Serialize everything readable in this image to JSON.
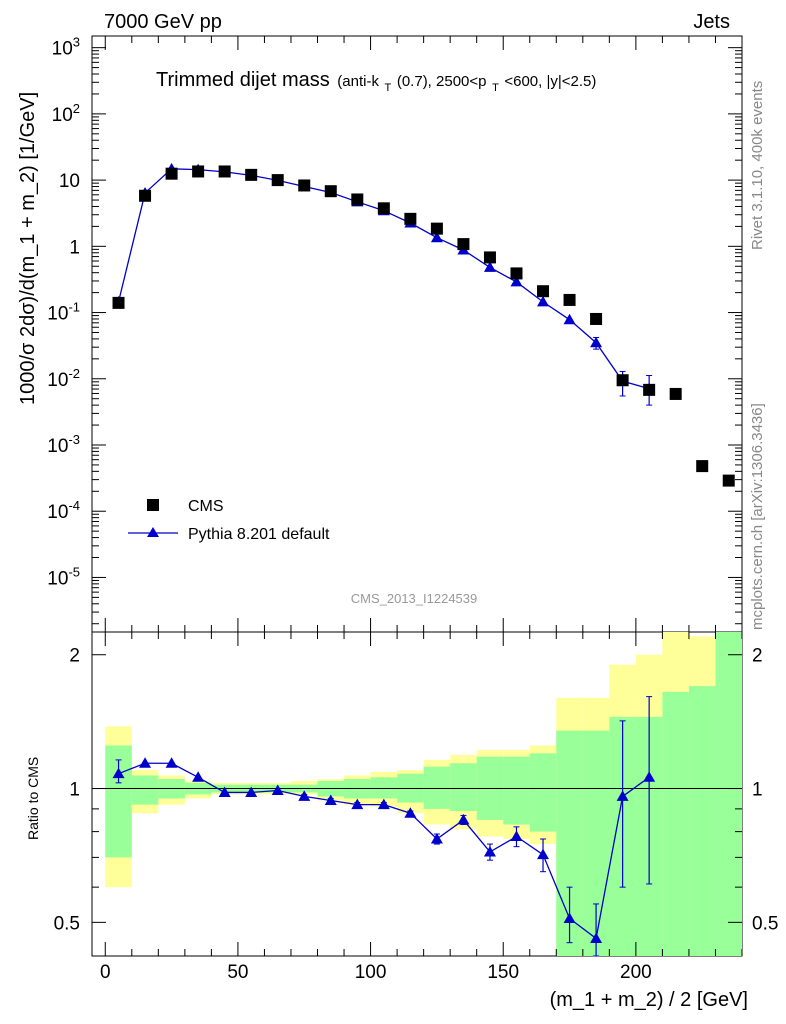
{
  "header": {
    "left": "7000 GeV pp",
    "right": "Jets"
  },
  "title": {
    "main": "Trimmed dijet mass",
    "sub_pre": "(anti-k",
    "sub_k_sub": "T",
    "sub_mid": "(0.7), 2500<p",
    "sub_p_sub": "T",
    "sub_post": "<600, |y|<2.5)"
  },
  "side_labels": {
    "rivet": "Rivet 3.1.10,  400k events",
    "arxiv": "mcplots.cern.ch [arXiv:1306.3436]"
  },
  "analysis_id": "CMS_2013_I1224539",
  "axes": {
    "ylabel_main": "1000/σ 2dσ)/d(m_1 + m_2) [1/GeV]",
    "ylabel_ratio": "Ratio to CMS",
    "xlabel": "(m_1 + m_2) / 2 [GeV]"
  },
  "legend": {
    "data_label": "CMS",
    "mc_label": "Pythia 8.201 default",
    "position": "bottom-left"
  },
  "colors": {
    "data": "#000000",
    "mc": "#0000cc",
    "band_inner": "#99ff99",
    "band_outer": "#ffff99",
    "id_text": "#999999"
  },
  "chart_data": [
    {
      "type": "scatter",
      "panel": "main",
      "yscale": "log",
      "xlim": [
        -5,
        240
      ],
      "ylim": [
        1.5e-06,
        1500
      ],
      "ytick_labels": [
        "10^-5",
        "10^-4",
        "10^-3",
        "10^-2",
        "10^-1",
        "1",
        "10",
        "10^2",
        "10^3"
      ],
      "series": [
        {
          "name": "CMS",
          "style": "markers",
          "x": [
            5,
            15,
            25,
            35,
            45,
            55,
            65,
            75,
            85,
            95,
            105,
            115,
            125,
            135,
            145,
            155,
            165,
            175,
            185,
            195,
            205,
            215,
            225,
            235
          ],
          "y": [
            0.14,
            5.8,
            12.5,
            13.5,
            13.5,
            12.0,
            10.0,
            8.3,
            6.8,
            5.1,
            3.75,
            2.6,
            1.85,
            1.08,
            0.68,
            0.39,
            0.21,
            0.155,
            0.08,
            0.0095,
            0.0068,
            0.0059,
            0.00048,
            0.00029
          ]
        },
        {
          "name": "Pythia 8.201 default",
          "style": "line+markers",
          "x": [
            5,
            15,
            25,
            35,
            45,
            55,
            65,
            75,
            85,
            95,
            105,
            115,
            125,
            135,
            145,
            155,
            165,
            175,
            185,
            195,
            205
          ],
          "y": [
            0.145,
            6.4,
            14.8,
            14.4,
            13.3,
            11.8,
            9.9,
            8.0,
            6.5,
            4.7,
            3.45,
            2.25,
            1.35,
            0.88,
            0.48,
            0.29,
            0.145,
            0.078,
            0.035,
            0.0092,
            0.0071
          ],
          "yerr_low": [
            0.01,
            0.2,
            0.3,
            0.3,
            0.2,
            0.2,
            0.1,
            0.1,
            0.1,
            0.1,
            0.1,
            0.1,
            0.05,
            0.04,
            0.03,
            0.02,
            0.012,
            0.008,
            0.007,
            0.0037,
            0.0031
          ],
          "yerr_high": [
            0.01,
            0.2,
            0.3,
            0.3,
            0.2,
            0.2,
            0.1,
            0.1,
            0.1,
            0.1,
            0.1,
            0.1,
            0.05,
            0.04,
            0.03,
            0.02,
            0.012,
            0.008,
            0.007,
            0.0037,
            0.0041
          ]
        }
      ]
    },
    {
      "type": "line",
      "panel": "ratio",
      "xlim": [
        -5,
        240
      ],
      "ylim": [
        0.42,
        2.25
      ],
      "ytick_labels": [
        "0.5",
        "1",
        "2"
      ],
      "xtick_labels": [
        "0",
        "50",
        "100",
        "150",
        "200"
      ],
      "bands": {
        "edges": [
          0,
          10,
          20,
          30,
          40,
          50,
          60,
          70,
          80,
          90,
          100,
          110,
          120,
          130,
          140,
          150,
          160,
          170,
          180,
          190,
          200,
          210,
          220,
          230,
          240
        ],
        "inner_low": [
          0.7,
          0.92,
          0.95,
          0.97,
          0.98,
          0.98,
          0.98,
          0.98,
          0.96,
          0.95,
          0.95,
          0.93,
          0.9,
          0.89,
          0.85,
          0.83,
          0.8,
          0.35,
          0.35,
          0.35,
          0.35,
          0.35,
          0.35,
          0.35
        ],
        "inner_high": [
          1.25,
          1.07,
          1.05,
          1.03,
          1.02,
          1.02,
          1.02,
          1.02,
          1.04,
          1.05,
          1.06,
          1.08,
          1.12,
          1.14,
          1.18,
          1.18,
          1.2,
          1.35,
          1.35,
          1.45,
          1.45,
          1.65,
          1.7,
          2.25
        ],
        "outer_low": [
          0.6,
          0.88,
          0.92,
          0.95,
          0.97,
          0.97,
          0.97,
          0.97,
          0.94,
          0.92,
          0.91,
          0.88,
          0.83,
          0.81,
          0.78,
          0.77,
          0.75,
          0.35,
          0.35,
          0.35,
          0.45,
          0.45,
          0.35,
          0.35
        ],
        "outer_high": [
          1.38,
          1.1,
          1.07,
          1.04,
          1.03,
          1.03,
          1.03,
          1.04,
          1.05,
          1.07,
          1.09,
          1.1,
          1.16,
          1.19,
          1.22,
          1.22,
          1.25,
          1.6,
          1.6,
          1.9,
          2.0,
          2.3,
          2.2,
          2.25
        ]
      },
      "series": [
        {
          "name": "Pythia 8.201 default",
          "x": [
            5,
            15,
            25,
            35,
            45,
            55,
            65,
            75,
            85,
            95,
            105,
            115,
            125,
            135,
            145,
            155,
            165,
            175,
            185,
            195,
            205
          ],
          "y": [
            1.08,
            1.14,
            1.14,
            1.06,
            0.98,
            0.98,
            0.99,
            0.96,
            0.94,
            0.92,
            0.92,
            0.88,
            0.77,
            0.85,
            0.72,
            0.78,
            0.71,
            0.51,
            0.46,
            0.96,
            1.06
          ],
          "yerr_low": [
            0.05,
            0.01,
            0.01,
            0.01,
            0.01,
            0.01,
            0.01,
            0.01,
            0.01,
            0.01,
            0.01,
            0.01,
            0.02,
            0.02,
            0.03,
            0.04,
            0.06,
            0.06,
            0.08,
            0.36,
            0.45
          ],
          "yerr_high": [
            0.08,
            0.01,
            0.01,
            0.01,
            0.01,
            0.01,
            0.01,
            0.01,
            0.01,
            0.01,
            0.01,
            0.01,
            0.02,
            0.02,
            0.03,
            0.04,
            0.06,
            0.09,
            0.09,
            0.46,
            0.55
          ]
        }
      ],
      "reference_line": 1
    }
  ]
}
